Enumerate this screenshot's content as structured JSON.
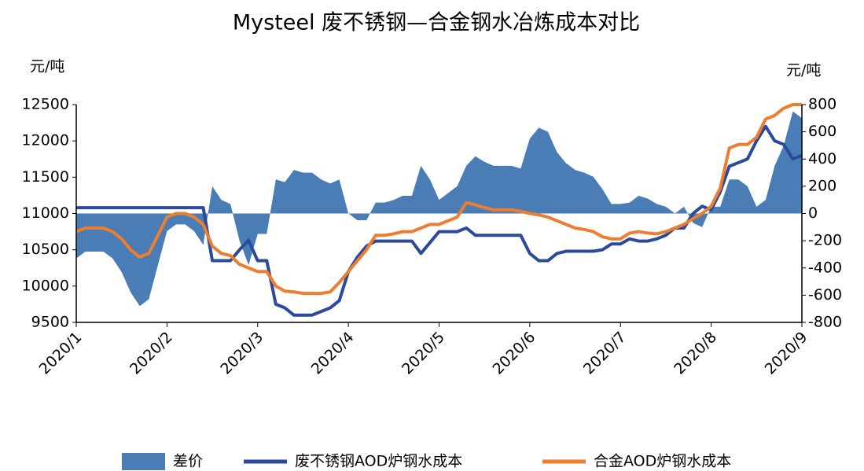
{
  "chart_data": {
    "type": "line",
    "title": "Mysteel 废不锈钢—合金钢水冶炼成本对比",
    "y_label": "元/吨",
    "y2_label": "元/吨",
    "categories": [
      "2020/1",
      null,
      null,
      null,
      null,
      null,
      null,
      null,
      null,
      null,
      "2020/2",
      null,
      null,
      null,
      null,
      null,
      null,
      null,
      null,
      null,
      "2020/3",
      null,
      null,
      null,
      null,
      null,
      null,
      null,
      null,
      null,
      "2020/4",
      null,
      null,
      null,
      null,
      null,
      null,
      null,
      null,
      null,
      "2020/5",
      null,
      null,
      null,
      null,
      null,
      null,
      null,
      null,
      null,
      "2020/6",
      null,
      null,
      null,
      null,
      null,
      null,
      null,
      null,
      null,
      "2020/7",
      null,
      null,
      null,
      null,
      null,
      null,
      null,
      null,
      null,
      "2020/8",
      null,
      null,
      null,
      null,
      null,
      null,
      null,
      null,
      null,
      "2020/9"
    ],
    "ylim": [
      9500,
      12500
    ],
    "yticks": [
      9500,
      10000,
      10500,
      11000,
      11500,
      12000,
      12500
    ],
    "y2lim": [
      -800,
      800
    ],
    "y2ticks": [
      -800,
      -600,
      -400,
      -200,
      0,
      200,
      400,
      600,
      800
    ],
    "legend": "bottom",
    "series": [
      {
        "name": "差价",
        "type": "area",
        "axis": "y2",
        "color": "#4a7db5",
        "values": [
          -330,
          -280,
          -280,
          -280,
          -330,
          -430,
          -580,
          -680,
          -630,
          -380,
          -130,
          -80,
          -80,
          -130,
          -230,
          200,
          100,
          70,
          -200,
          -380,
          -150,
          -150,
          250,
          230,
          320,
          300,
          300,
          250,
          220,
          250,
          0,
          -50,
          -50,
          80,
          80,
          100,
          130,
          130,
          350,
          250,
          100,
          150,
          200,
          350,
          420,
          380,
          350,
          350,
          350,
          330,
          550,
          630,
          600,
          450,
          370,
          320,
          300,
          270,
          180,
          70,
          70,
          80,
          130,
          110,
          70,
          50,
          0,
          50,
          -70,
          -100,
          50,
          50,
          250,
          250,
          200,
          50,
          100,
          350,
          500,
          750,
          700
        ]
      },
      {
        "name": "废不锈钢AOD炉钢水成本",
        "type": "line",
        "color": "#2b4a9b",
        "values": [
          11080,
          11080,
          11080,
          11080,
          11080,
          11080,
          11080,
          11080,
          11080,
          11080,
          11080,
          11080,
          11080,
          11080,
          11080,
          10350,
          10350,
          10350,
          10500,
          10630,
          10350,
          10350,
          9750,
          9700,
          9600,
          9600,
          9600,
          9650,
          9700,
          9800,
          10200,
          10400,
          10550,
          10620,
          10620,
          10620,
          10620,
          10620,
          10450,
          10600,
          10750,
          10750,
          10750,
          10800,
          10700,
          10700,
          10700,
          10700,
          10700,
          10700,
          10450,
          10350,
          10350,
          10450,
          10480,
          10480,
          10480,
          10480,
          10500,
          10580,
          10580,
          10650,
          10620,
          10620,
          10650,
          10700,
          10800,
          10800,
          11000,
          11100,
          11050,
          11300,
          11650,
          11700,
          11750,
          12000,
          12200,
          12000,
          11950,
          11750,
          11800
        ]
      },
      {
        "name": "合金AOD炉钢水成本",
        "type": "line",
        "color": "#ed7d31",
        "values": [
          10750,
          10800,
          10800,
          10800,
          10750,
          10650,
          10500,
          10400,
          10450,
          10700,
          10950,
          11000,
          11000,
          10950,
          10850,
          10550,
          10450,
          10420,
          10300,
          10250,
          10200,
          10200,
          10000,
          9930,
          9920,
          9900,
          9900,
          9900,
          9920,
          10050,
          10200,
          10350,
          10500,
          10700,
          10700,
          10720,
          10750,
          10750,
          10800,
          10850,
          10850,
          10900,
          10950,
          11150,
          11120,
          11080,
          11050,
          11050,
          11050,
          11030,
          11000,
          10980,
          10950,
          10900,
          10850,
          10800,
          10780,
          10750,
          10680,
          10650,
          10650,
          10730,
          10750,
          10730,
          10720,
          10750,
          10800,
          10850,
          10930,
          11000,
          11100,
          11350,
          11900,
          11950,
          11950,
          12050,
          12300,
          12350,
          12450,
          12500,
          12500
        ]
      }
    ]
  }
}
